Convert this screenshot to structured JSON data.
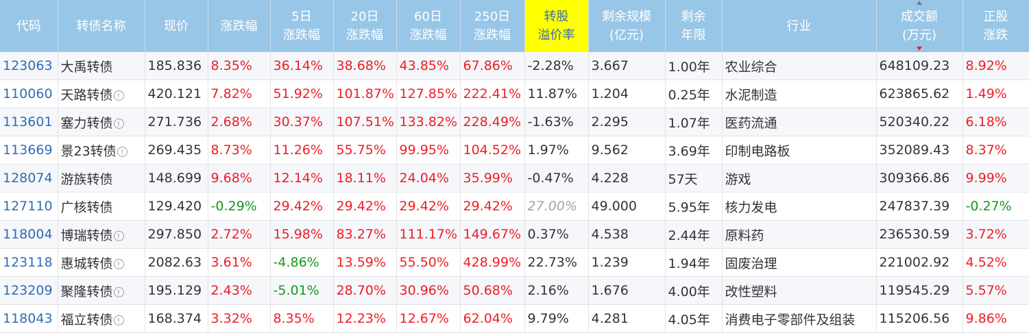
{
  "headers": [
    {
      "l1": "代码",
      "l2": ""
    },
    {
      "l1": "转债名称",
      "l2": ""
    },
    {
      "l1": "现价",
      "l2": ""
    },
    {
      "l1": "涨跌幅",
      "l2": ""
    },
    {
      "l1": "5日",
      "l2": "涨跌幅"
    },
    {
      "l1": "20日",
      "l2": "涨跌幅"
    },
    {
      "l1": "60日",
      "l2": "涨跌幅"
    },
    {
      "l1": "250日",
      "l2": "涨跌幅"
    },
    {
      "l1": "转股",
      "l2": "溢价率"
    },
    {
      "l1": "剩余规模",
      "l2": "(亿元)"
    },
    {
      "l1": "剩余",
      "l2": "年限"
    },
    {
      "l1": "行业",
      "l2": ""
    },
    {
      "l1": "成交额",
      "l2": "(万元)"
    },
    {
      "l1": "正股",
      "l2": "涨跌"
    }
  ],
  "sort_column": "成交额",
  "colors": {
    "header_bg": "#98c6e6",
    "highlight_header": "#ffff00",
    "up": "#ee1d23",
    "down": "#139a1c",
    "code": "#2f6db3"
  },
  "rows": [
    {
      "code": "123063",
      "name": "大禹转债",
      "info": false,
      "price": "185.836",
      "chg": "8.35%",
      "d5": "36.14%",
      "d20": "38.68%",
      "d60": "43.85%",
      "d250": "67.86%",
      "premium": "-2.28%",
      "scale": "3.667",
      "years": "1.00年",
      "industry": "农业综合",
      "turnover": "648109.23",
      "stock_chg": "8.92%"
    },
    {
      "code": "110060",
      "name": "天路转债",
      "info": true,
      "price": "420.121",
      "chg": "7.82%",
      "d5": "51.92%",
      "d20": "101.87%",
      "d60": "127.85%",
      "d250": "222.41%",
      "premium": "11.87%",
      "scale": "1.204",
      "years": "0.25年",
      "industry": "水泥制造",
      "turnover": "623865.62",
      "stock_chg": "1.49%"
    },
    {
      "code": "113601",
      "name": "塞力转债",
      "info": true,
      "price": "271.736",
      "chg": "2.68%",
      "d5": "30.37%",
      "d20": "107.51%",
      "d60": "133.82%",
      "d250": "228.49%",
      "premium": "-1.63%",
      "scale": "2.295",
      "years": "1.07年",
      "industry": "医药流通",
      "turnover": "520340.22",
      "stock_chg": "6.18%"
    },
    {
      "code": "113669",
      "name": "景23转债",
      "info": true,
      "price": "269.435",
      "chg": "8.73%",
      "d5": "11.26%",
      "d20": "55.75%",
      "d60": "99.95%",
      "d250": "104.52%",
      "premium": "1.97%",
      "scale": "9.562",
      "years": "3.69年",
      "industry": "印制电路板",
      "turnover": "352089.43",
      "stock_chg": "8.37%"
    },
    {
      "code": "128074",
      "name": "游族转债",
      "info": false,
      "price": "148.699",
      "chg": "9.68%",
      "d5": "12.14%",
      "d20": "18.11%",
      "d60": "24.04%",
      "d250": "35.99%",
      "premium": "-0.47%",
      "scale": "4.228",
      "years": "57天",
      "industry": "游戏",
      "turnover": "309366.86",
      "stock_chg": "9.99%"
    },
    {
      "code": "127110",
      "name": "广核转债",
      "info": false,
      "price": "129.420",
      "chg": "-0.29%",
      "d5": "29.42%",
      "d20": "29.42%",
      "d60": "29.42%",
      "d250": "29.42%",
      "premium": "27.00%",
      "premium_muted": true,
      "scale": "49.000",
      "years": "5.95年",
      "industry": "核力发电",
      "turnover": "247837.39",
      "stock_chg": "-0.27%"
    },
    {
      "code": "118004",
      "name": "博瑞转债",
      "info": true,
      "price": "297.850",
      "chg": "2.72%",
      "d5": "15.98%",
      "d20": "83.27%",
      "d60": "111.17%",
      "d250": "149.67%",
      "premium": "0.37%",
      "scale": "4.538",
      "years": "2.44年",
      "industry": "原料药",
      "turnover": "236530.59",
      "stock_chg": "3.72%"
    },
    {
      "code": "123118",
      "name": "惠城转债",
      "info": true,
      "price": "2082.63",
      "chg": "3.61%",
      "d5": "-4.86%",
      "d20": "13.59%",
      "d60": "55.50%",
      "d250": "428.99%",
      "premium": "22.73%",
      "scale": "1.239",
      "years": "1.94年",
      "industry": "固废治理",
      "turnover": "221002.92",
      "stock_chg": "4.52%"
    },
    {
      "code": "123209",
      "name": "聚隆转债",
      "info": true,
      "price": "195.129",
      "chg": "2.43%",
      "d5": "-5.01%",
      "d20": "28.70%",
      "d60": "30.96%",
      "d250": "50.68%",
      "premium": "2.16%",
      "scale": "1.676",
      "years": "4.00年",
      "industry": "改性塑料",
      "turnover": "119545.29",
      "stock_chg": "5.57%"
    },
    {
      "code": "118043",
      "name": "福立转债",
      "info": true,
      "price": "168.374",
      "chg": "3.32%",
      "d5": "8.35%",
      "d20": "12.23%",
      "d60": "12.67%",
      "d250": "62.04%",
      "premium": "9.79%",
      "scale": "4.281",
      "years": "4.05年",
      "industry": "消费电子零部件及组装",
      "turnover": "115206.56",
      "stock_chg": "9.86%"
    }
  ]
}
